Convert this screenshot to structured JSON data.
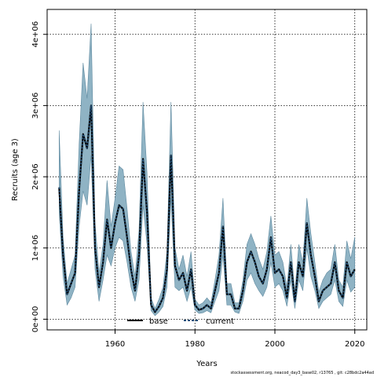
{
  "chart_data": {
    "type": "line",
    "xlabel": "Years",
    "ylabel": "Recruits (age 3)",
    "xlim": [
      1943,
      2023
    ],
    "ylim": [
      -150000,
      4350000
    ],
    "x_ticks": [
      1960,
      1980,
      2000,
      2020
    ],
    "x_tick_labels": [
      "1960",
      "1980",
      "2000",
      "2020"
    ],
    "y_ticks": [
      0,
      1000000,
      2000000,
      3000000,
      4000000
    ],
    "y_tick_labels": [
      "0e+00",
      "1e+06",
      "2e+06",
      "3e+06",
      "4e+06"
    ],
    "grid": true,
    "legend_placement": "bottom",
    "legend": [
      {
        "label": "base",
        "color": "#000000",
        "style": "solid"
      },
      {
        "label": "current",
        "color": "#1f4e79",
        "style": "dashed"
      }
    ],
    "band_color": "#8fb3c4",
    "x": [
      1946,
      1947,
      1948,
      1949,
      1950,
      1951,
      1952,
      1953,
      1954,
      1955,
      1956,
      1957,
      1958,
      1959,
      1960,
      1961,
      1962,
      1963,
      1964,
      1965,
      1966,
      1967,
      1968,
      1969,
      1970,
      1971,
      1972,
      1973,
      1974,
      1975,
      1976,
      1977,
      1978,
      1979,
      1980,
      1981,
      1982,
      1983,
      1984,
      1985,
      1986,
      1987,
      1988,
      1989,
      1990,
      1991,
      1992,
      1993,
      1994,
      1995,
      1996,
      1997,
      1998,
      1999,
      2000,
      2001,
      2002,
      2003,
      2004,
      2005,
      2006,
      2007,
      2008,
      2009,
      2010,
      2011,
      2012,
      2013,
      2014,
      2015,
      2016,
      2017,
      2018,
      2019,
      2020
    ],
    "series": [
      {
        "name": "base",
        "values": [
          1850000,
          900000,
          350000,
          500000,
          650000,
          1800000,
          2600000,
          2400000,
          3000000,
          1000000,
          450000,
          800000,
          1400000,
          1000000,
          1350000,
          1600000,
          1550000,
          1150000,
          700000,
          400000,
          900000,
          2250000,
          1500000,
          200000,
          100000,
          180000,
          300000,
          700000,
          2300000,
          750000,
          550000,
          650000,
          400000,
          700000,
          200000,
          130000,
          150000,
          200000,
          150000,
          400000,
          650000,
          1300000,
          350000,
          350000,
          150000,
          150000,
          400000,
          800000,
          950000,
          800000,
          600000,
          500000,
          700000,
          1150000,
          650000,
          700000,
          600000,
          300000,
          800000,
          250000,
          800000,
          600000,
          1350000,
          900000,
          600000,
          250000,
          400000,
          450000,
          500000,
          800000,
          400000,
          300000,
          800000,
          600000,
          700000
        ]
      },
      {
        "name": "current",
        "values": [
          1850000,
          900000,
          350000,
          500000,
          650000,
          1800000,
          2600000,
          2400000,
          3000000,
          1000000,
          450000,
          800000,
          1400000,
          1000000,
          1350000,
          1600000,
          1550000,
          1150000,
          700000,
          400000,
          900000,
          2250000,
          1500000,
          200000,
          100000,
          180000,
          300000,
          700000,
          2300000,
          750000,
          550000,
          650000,
          400000,
          700000,
          200000,
          130000,
          150000,
          200000,
          150000,
          400000,
          650000,
          1300000,
          350000,
          350000,
          150000,
          150000,
          400000,
          800000,
          950000,
          800000,
          600000,
          500000,
          700000,
          1150000,
          650000,
          700000,
          600000,
          300000,
          800000,
          250000,
          800000,
          600000,
          1350000,
          900000,
          600000,
          250000,
          400000,
          450000,
          500000,
          800000,
          400000,
          300000,
          800000,
          600000,
          700000
        ]
      }
    ],
    "lower": [
      1500000,
      600000,
      200000,
      300000,
      450000,
      1300000,
      1800000,
      1600000,
      2300000,
      700000,
      250000,
      550000,
      900000,
      750000,
      1000000,
      1150000,
      1100000,
      800000,
      450000,
      250000,
      550000,
      1600000,
      1050000,
      120000,
      50000,
      100000,
      180000,
      450000,
      1700000,
      450000,
      400000,
      450000,
      250000,
      450000,
      130000,
      80000,
      90000,
      120000,
      90000,
      250000,
      400000,
      900000,
      200000,
      200000,
      100000,
      80000,
      250000,
      550000,
      650000,
      500000,
      400000,
      320000,
      450000,
      800000,
      450000,
      500000,
      400000,
      180000,
      550000,
      150000,
      550000,
      400000,
      1000000,
      600000,
      400000,
      150000,
      250000,
      300000,
      350000,
      550000,
      250000,
      180000,
      550000,
      380000,
      450000
    ],
    "upper": [
      2650000,
      1150000,
      500000,
      700000,
      900000,
      2450000,
      3600000,
      3100000,
      4150000,
      1350000,
      650000,
      1050000,
      1950000,
      1300000,
      1700000,
      2150000,
      2100000,
      1550000,
      950000,
      600000,
      1250000,
      3050000,
      2050000,
      300000,
      150000,
      280000,
      450000,
      950000,
      3050000,
      1000000,
      700000,
      900000,
      600000,
      950000,
      280000,
      200000,
      230000,
      300000,
      230000,
      550000,
      900000,
      1700000,
      500000,
      500000,
      230000,
      230000,
      550000,
      1050000,
      1200000,
      1050000,
      850000,
      700000,
      950000,
      1450000,
      900000,
      950000,
      800000,
      450000,
      1050000,
      380000,
      1050000,
      800000,
      1700000,
      1200000,
      800000,
      380000,
      550000,
      650000,
      700000,
      1050000,
      550000,
      450000,
      1100000,
      850000,
      1150000
    ]
  },
  "footer": {
    "text": "stockassessment.org, neacod_day3_base02, r13765 ,  git: c28bdc2a44ad"
  }
}
